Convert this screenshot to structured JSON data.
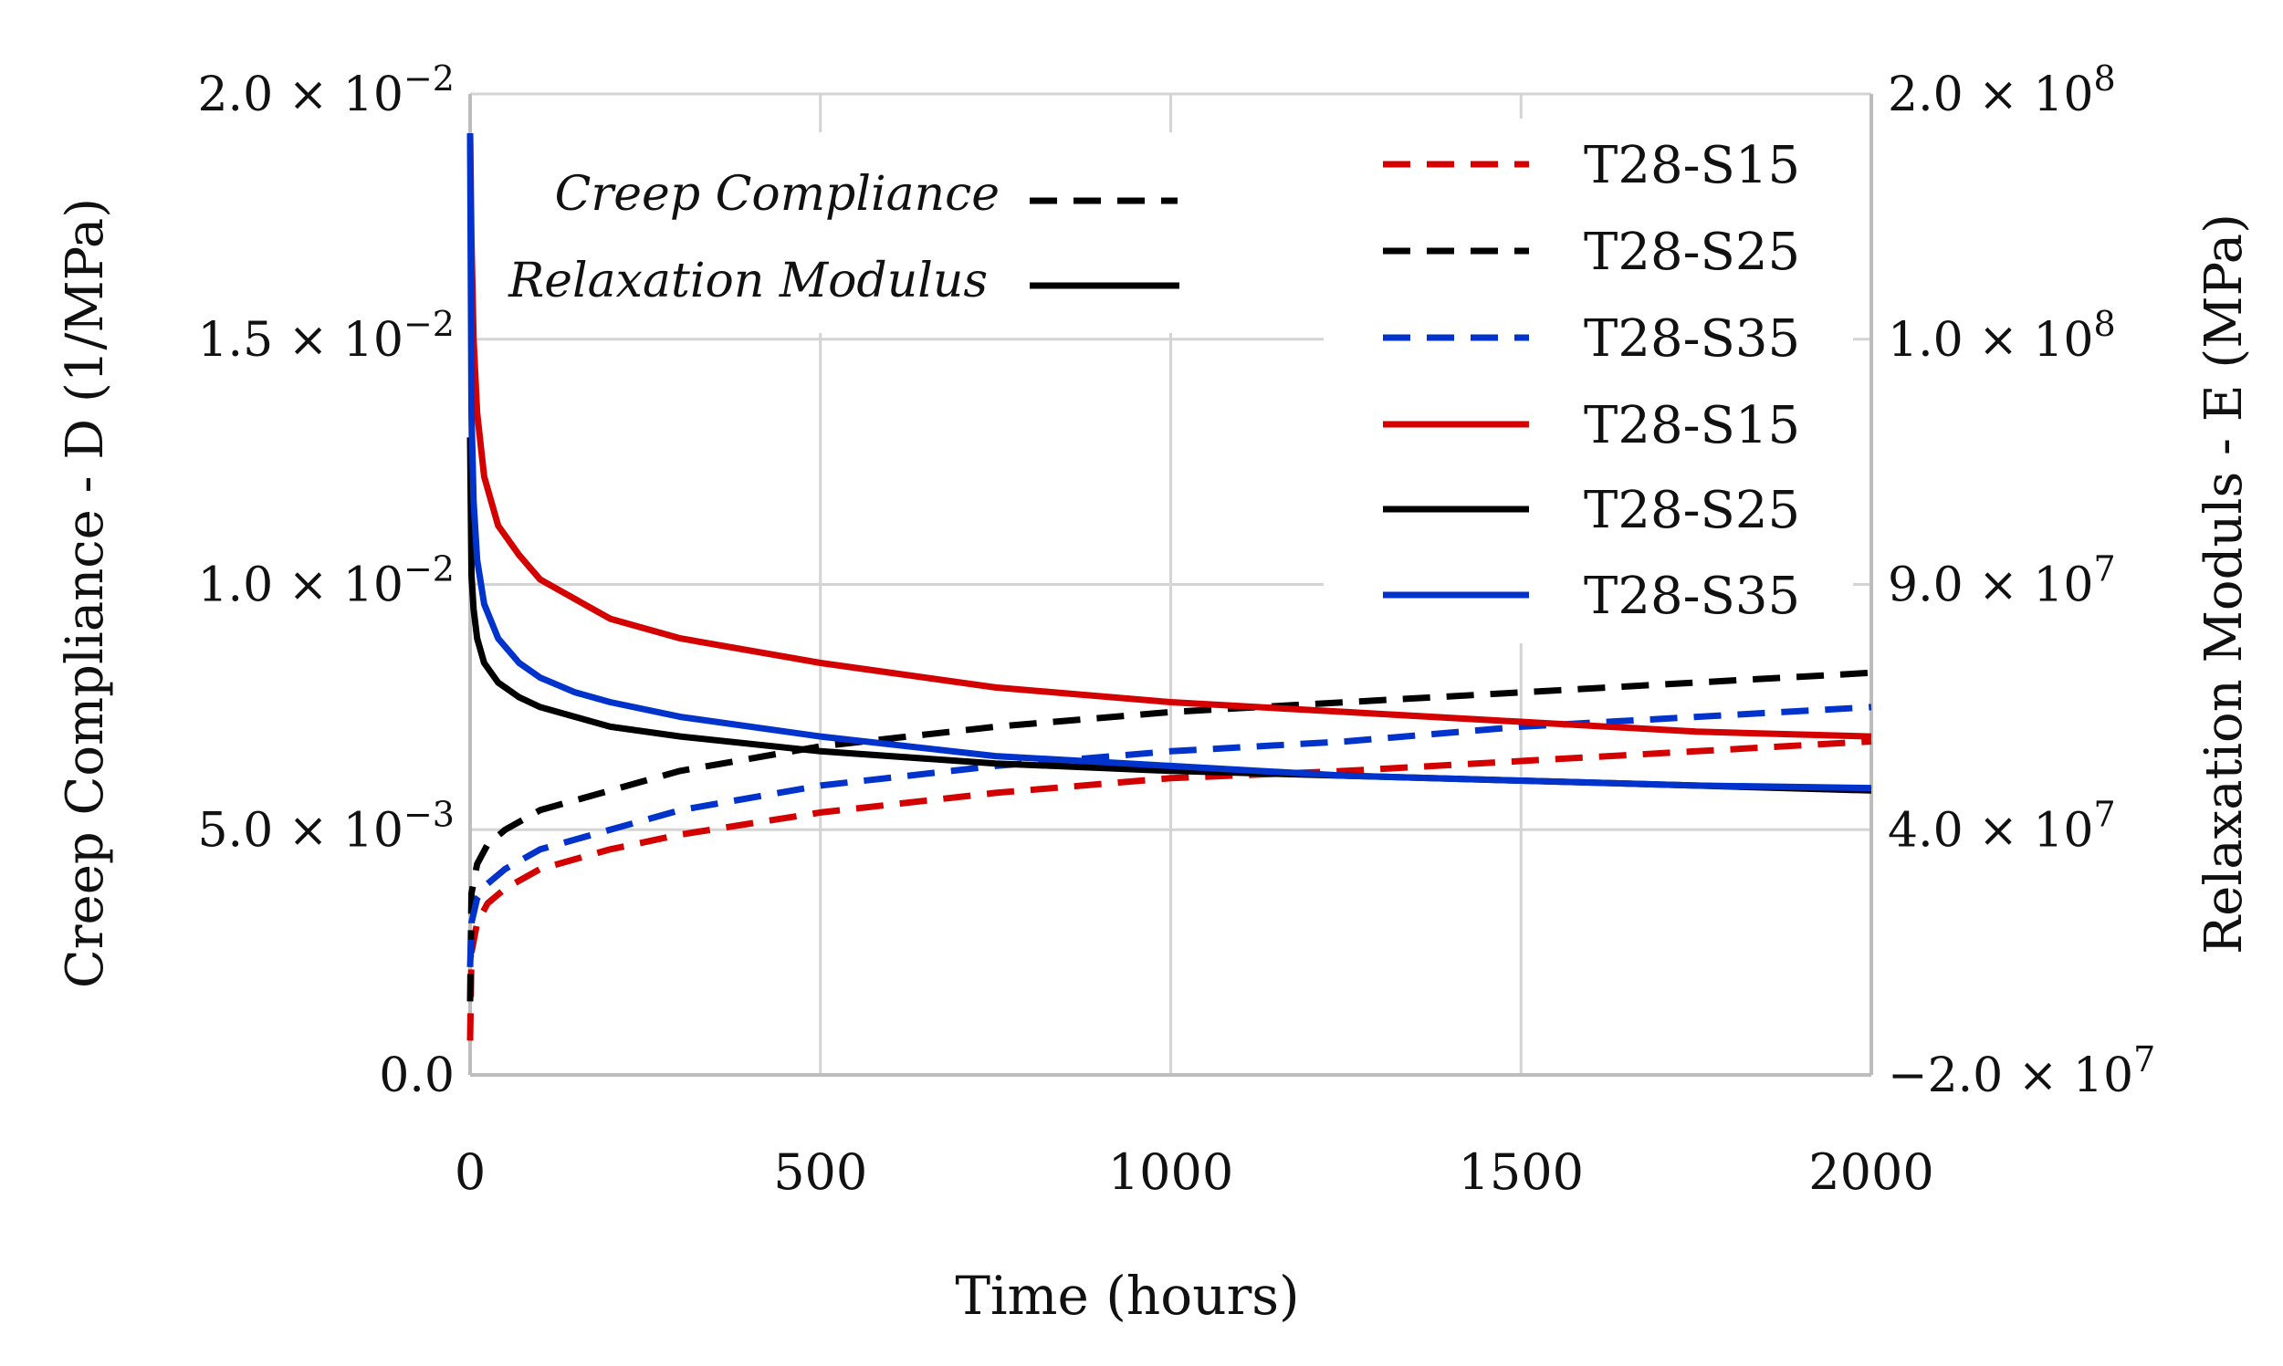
{
  "chart_data": {
    "type": "line",
    "title": "",
    "xlabel": "Time (hours)",
    "ylabel_left": "Creep Compliance - D (1/MPa)",
    "ylabel_right": "Relaxation Moduls - E (MPa)",
    "xlim": [
      0,
      2000
    ],
    "ylim_left": [
      0,
      0.02
    ],
    "grid": true,
    "x_ticks": [
      "0",
      "500",
      "1000",
      "1500",
      "2000"
    ],
    "y_left_ticks": [
      {
        "mantissa": "0.0",
        "exp": ""
      },
      {
        "mantissa": "5.0 × 10",
        "exp": "−3"
      },
      {
        "mantissa": "1.0 × 10",
        "exp": "−2"
      },
      {
        "mantissa": "1.5 × 10",
        "exp": "−2"
      },
      {
        "mantissa": "2.0 × 10",
        "exp": "−2"
      }
    ],
    "y_right_ticks": [
      {
        "mantissa": "−2.0 × 10",
        "exp": "7"
      },
      {
        "mantissa": "4.0 × 10",
        "exp": "7"
      },
      {
        "mantissa": "9.0 × 10",
        "exp": "7"
      },
      {
        "mantissa": "1.0 × 10",
        "exp": "8"
      },
      {
        "mantissa": "2.0 × 10",
        "exp": "8"
      }
    ],
    "style_legend": [
      {
        "label": "Creep Compliance",
        "dash": "dashed"
      },
      {
        "label": "Relaxation Modulus",
        "dash": "solid"
      }
    ],
    "series": [
      {
        "name": "T28-S15",
        "kind": "creep",
        "color": "#d40000",
        "dash": "dashed",
        "x": [
          0,
          2,
          10,
          25,
          50,
          100,
          200,
          300,
          500,
          750,
          1000,
          1250,
          1500,
          1750,
          2000
        ],
        "y": [
          0.0007,
          0.0025,
          0.0031,
          0.0035,
          0.0038,
          0.0042,
          0.0046,
          0.0049,
          0.00535,
          0.00575,
          0.00605,
          0.0062,
          0.0064,
          0.0066,
          0.0068
        ]
      },
      {
        "name": "T28-S25",
        "kind": "creep",
        "color": "#000000",
        "dash": "dashed",
        "x": [
          0,
          2,
          10,
          25,
          50,
          100,
          200,
          300,
          500,
          750,
          1000,
          1250,
          1500,
          1750,
          2000
        ],
        "y": [
          0.0015,
          0.0037,
          0.0043,
          0.0047,
          0.005,
          0.0054,
          0.0058,
          0.0062,
          0.0067,
          0.0071,
          0.0074,
          0.0076,
          0.0078,
          0.008,
          0.0082
        ]
      },
      {
        "name": "T28-S35",
        "kind": "creep",
        "color": "#0033cc",
        "dash": "dashed",
        "x": [
          0,
          2,
          10,
          25,
          50,
          100,
          200,
          300,
          500,
          750,
          1000,
          1250,
          1500,
          1750,
          2000
        ],
        "y": [
          0.0022,
          0.0031,
          0.0036,
          0.0039,
          0.0042,
          0.0046,
          0.005,
          0.0054,
          0.0059,
          0.0063,
          0.0066,
          0.0068,
          0.0071,
          0.0073,
          0.0075
        ]
      },
      {
        "name": "T28-S15",
        "kind": "relaxation",
        "color": "#d40000",
        "dash": "solid",
        "x": [
          0,
          2,
          5,
          10,
          20,
          40,
          70,
          100,
          150,
          200,
          300,
          500,
          750,
          1000,
          1250,
          1500,
          1750,
          2000
        ],
        "y": [
          0.0192,
          0.017,
          0.015,
          0.0135,
          0.0122,
          0.0112,
          0.0106,
          0.0101,
          0.0097,
          0.0093,
          0.0089,
          0.0084,
          0.0079,
          0.0076,
          0.0074,
          0.0072,
          0.007,
          0.0069
        ]
      },
      {
        "name": "T28-S25",
        "kind": "relaxation",
        "color": "#000000",
        "dash": "solid",
        "x": [
          0,
          2,
          5,
          10,
          20,
          40,
          70,
          100,
          150,
          200,
          300,
          500,
          750,
          1000,
          1250,
          1500,
          1750,
          2000
        ],
        "y": [
          0.013,
          0.0102,
          0.0095,
          0.0089,
          0.0084,
          0.008,
          0.0077,
          0.0075,
          0.0073,
          0.0071,
          0.0069,
          0.0066,
          0.00635,
          0.0062,
          0.0061,
          0.006,
          0.0059,
          0.0058
        ]
      },
      {
        "name": "T28-S35",
        "kind": "relaxation",
        "color": "#0033cc",
        "dash": "solid",
        "x": [
          0,
          2,
          5,
          10,
          20,
          40,
          70,
          100,
          150,
          200,
          300,
          500,
          750,
          1000,
          1250,
          1500,
          1750,
          2000
        ],
        "y": [
          0.0192,
          0.0135,
          0.0117,
          0.0105,
          0.0096,
          0.0089,
          0.0084,
          0.0081,
          0.0078,
          0.0076,
          0.0073,
          0.0069,
          0.0065,
          0.0063,
          0.0061,
          0.006,
          0.0059,
          0.00585
        ]
      }
    ]
  }
}
